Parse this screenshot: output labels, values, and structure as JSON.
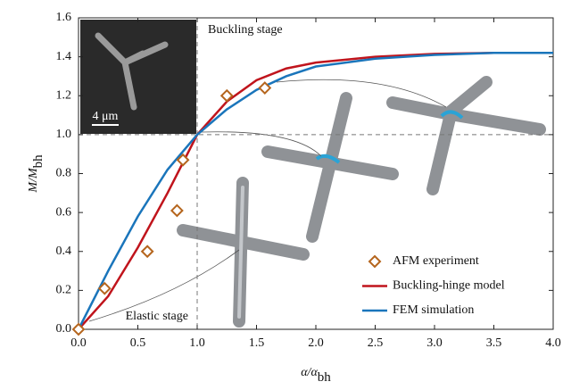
{
  "chart_data": {
    "type": "line",
    "x_label": {
      "main": "α/α",
      "sub": "bh"
    },
    "y_label": {
      "main": "M/M",
      "sub": "bh"
    },
    "xlim": [
      0,
      4
    ],
    "ylim": [
      0,
      1.6
    ],
    "xticks": [
      {
        "value": 0,
        "label": "0.0"
      },
      {
        "value": 0.5,
        "label": "0.5"
      },
      {
        "value": 1,
        "label": "1.0"
      },
      {
        "value": 1.5,
        "label": "1.5"
      },
      {
        "value": 2,
        "label": "2.0"
      },
      {
        "value": 2.5,
        "label": "2.5"
      },
      {
        "value": 3,
        "label": "3.0"
      },
      {
        "value": 3.5,
        "label": "3.5"
      },
      {
        "value": 4,
        "label": "4.0"
      }
    ],
    "yticks": [
      {
        "value": 0,
        "label": "0.0"
      },
      {
        "value": 0.2,
        "label": "0.2"
      },
      {
        "value": 0.4,
        "label": "0.4"
      },
      {
        "value": 0.6,
        "label": "0.6"
      },
      {
        "value": 0.8,
        "label": "0.8"
      },
      {
        "value": 1,
        "label": "1.0"
      },
      {
        "value": 1.2,
        "label": "1.2"
      },
      {
        "value": 1.4,
        "label": "1.4"
      },
      {
        "value": 1.6,
        "label": "1.6"
      }
    ],
    "reference_x": 1,
    "reference_y": 1,
    "annotations": [
      "Buckling stage",
      "Elastic stage",
      "4 μm"
    ],
    "series": [
      {
        "name": "AFM experiment",
        "kind": "scatter",
        "color": "#b5651d",
        "x": [
          0,
          0.22,
          0.58,
          0.83,
          0.88,
          1.25,
          1.57
        ],
        "values": [
          0,
          0.21,
          0.4,
          0.61,
          0.87,
          1.2,
          1.24
        ]
      },
      {
        "name": "Buckling-hinge model",
        "kind": "line",
        "color": "#c0141c",
        "x": [
          0,
          0.25,
          0.5,
          0.75,
          1,
          1.25,
          1.5,
          1.75,
          2,
          2.5,
          3,
          3.5,
          4
        ],
        "values": [
          0,
          0.17,
          0.42,
          0.7,
          1.0,
          1.17,
          1.28,
          1.34,
          1.37,
          1.4,
          1.415,
          1.42,
          1.42
        ]
      },
      {
        "name": "FEM simulation",
        "kind": "line",
        "color": "#1a75bb",
        "x": [
          0,
          0.25,
          0.5,
          0.75,
          1,
          1.25,
          1.5,
          1.75,
          2,
          2.5,
          3,
          3.5,
          4
        ],
        "values": [
          0,
          0.3,
          0.58,
          0.82,
          1.0,
          1.13,
          1.23,
          1.3,
          1.35,
          1.39,
          1.41,
          1.42,
          1.42
        ]
      }
    ]
  }
}
